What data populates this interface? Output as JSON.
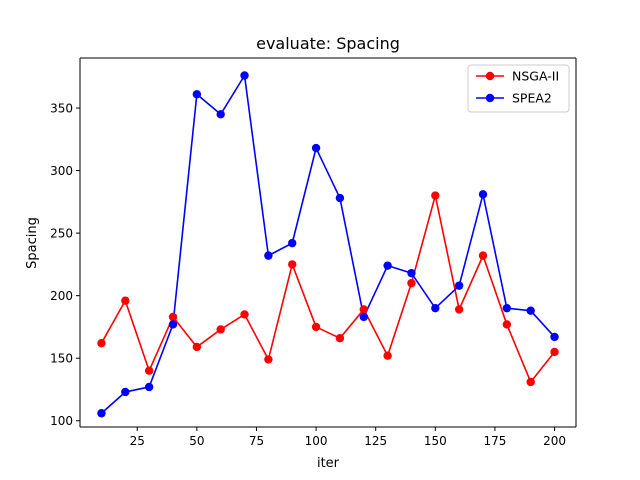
{
  "chart_data": {
    "type": "line",
    "title": "evaluate: Spacing",
    "xlabel": "iter",
    "ylabel": "Spacing",
    "xlim": [
      1,
      209
    ],
    "ylim": [
      95,
      390
    ],
    "xticks": [
      25,
      50,
      75,
      100,
      125,
      150,
      175,
      200
    ],
    "yticks": [
      100,
      150,
      200,
      250,
      300,
      350
    ],
    "grid": false,
    "legend_position": "top-right",
    "x": [
      10,
      20,
      30,
      40,
      50,
      60,
      70,
      80,
      90,
      100,
      110,
      120,
      130,
      140,
      150,
      160,
      170,
      180,
      190,
      200
    ],
    "series": [
      {
        "name": "NSGA-II",
        "color": "#ff0000",
        "marker": "circle",
        "values": [
          162,
          196,
          140,
          183,
          159,
          173,
          185,
          149,
          225,
          175,
          166,
          189,
          152,
          210,
          280,
          189,
          232,
          177,
          131,
          155
        ]
      },
      {
        "name": "SPEA2",
        "color": "#0000ff",
        "marker": "circle",
        "values": [
          106,
          123,
          127,
          177,
          361,
          345,
          376,
          232,
          242,
          318,
          278,
          183,
          224,
          218,
          190,
          208,
          281,
          190,
          188,
          167
        ]
      }
    ]
  }
}
